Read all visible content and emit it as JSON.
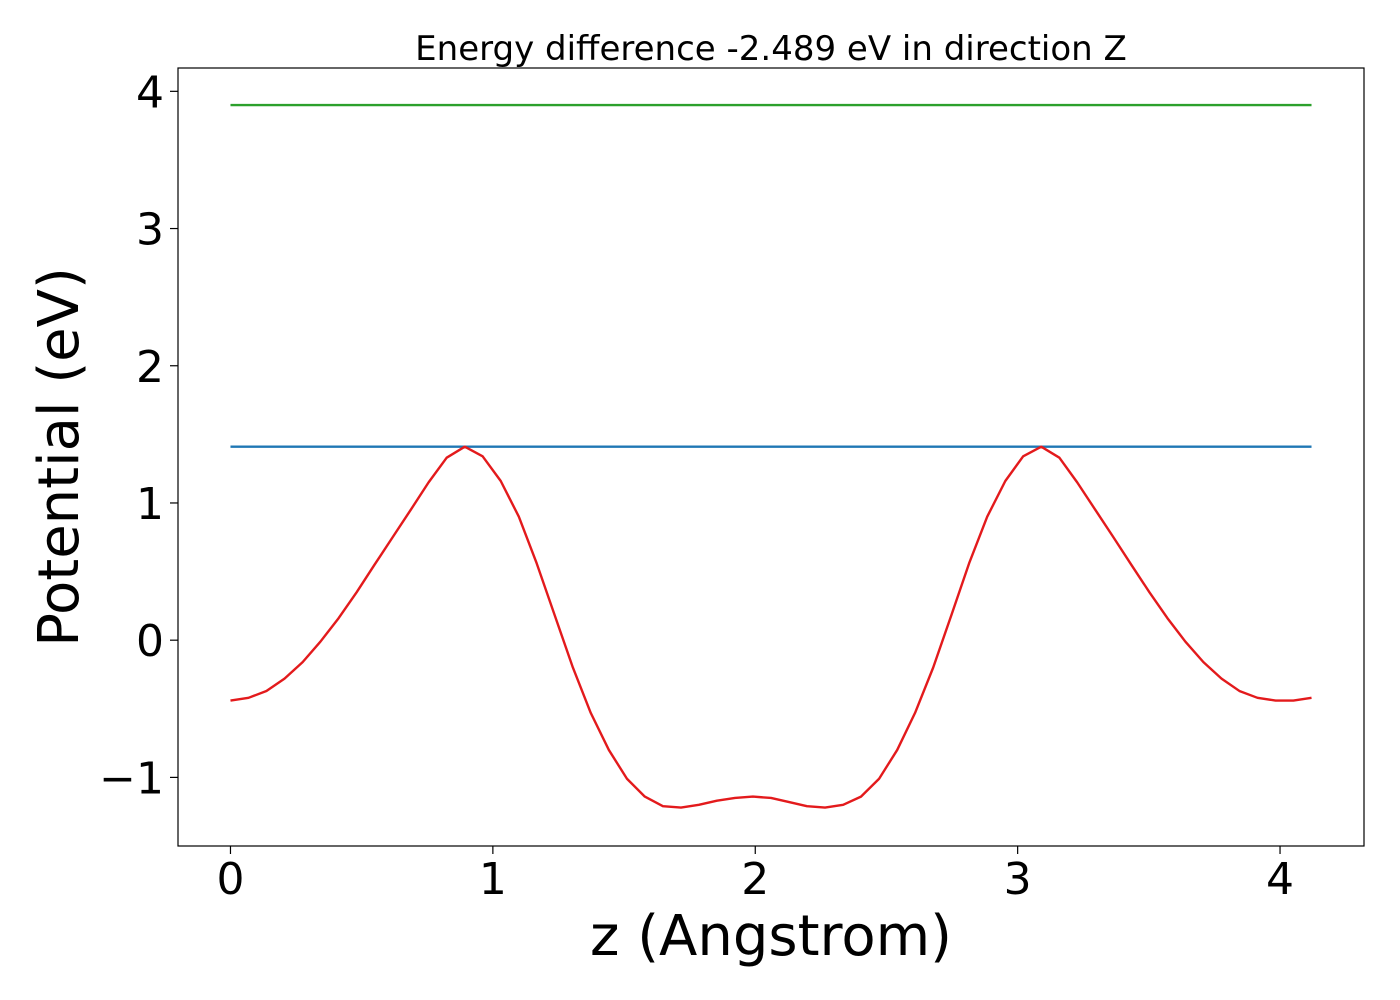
{
  "chart_data": {
    "type": "line",
    "title": "Energy difference -2.489 eV in direction Z",
    "xlabel": "z (Angstrom)",
    "ylabel": "Potential (eV)",
    "xlim": [
      -0.2,
      4.32
    ],
    "ylim": [
      -1.5,
      4.17
    ],
    "xticks": [
      0,
      1,
      2,
      3,
      4
    ],
    "yticks": [
      -1,
      0,
      1,
      2,
      3,
      4
    ],
    "xtick_labels": [
      "0",
      "1",
      "2",
      "3",
      "4"
    ],
    "ytick_labels": [
      "−1",
      "0",
      "1",
      "2",
      "3",
      "4"
    ],
    "grid": false,
    "legend": "none",
    "series": [
      {
        "color": "#2ca02c",
        "x": [
          0,
          4.12
        ],
        "y": [
          3.9,
          3.9
        ]
      },
      {
        "color": "#1f77b4",
        "x": [
          0,
          4.12
        ],
        "y": [
          1.41,
          1.41
        ]
      },
      {
        "color": "#e31a1c",
        "x": [
          0,
          0.069,
          0.137,
          0.206,
          0.275,
          0.343,
          0.412,
          0.481,
          0.549,
          0.618,
          0.687,
          0.755,
          0.824,
          0.893,
          0.961,
          1.03,
          1.099,
          1.167,
          1.236,
          1.305,
          1.373,
          1.442,
          1.511,
          1.579,
          1.648,
          1.717,
          1.785,
          1.854,
          1.923,
          1.991,
          2.06,
          2.129,
          2.197,
          2.266,
          2.335,
          2.403,
          2.472,
          2.541,
          2.609,
          2.678,
          2.747,
          2.815,
          2.884,
          2.953,
          3.021,
          3.09,
          3.159,
          3.227,
          3.296,
          3.365,
          3.433,
          3.502,
          3.571,
          3.639,
          3.708,
          3.777,
          3.845,
          3.914,
          3.983,
          4.051,
          4.12
        ],
        "y": [
          -0.44,
          -0.42,
          -0.37,
          -0.28,
          -0.16,
          -0.01,
          0.16,
          0.35,
          0.55,
          0.75,
          0.95,
          1.15,
          1.33,
          1.41,
          1.34,
          1.16,
          0.9,
          0.56,
          0.18,
          -0.2,
          -0.53,
          -0.8,
          -1.01,
          -1.14,
          -1.21,
          -1.22,
          -1.2,
          -1.17,
          -1.15,
          -1.14,
          -1.15,
          -1.18,
          -1.21,
          -1.22,
          -1.2,
          -1.14,
          -1.01,
          -0.8,
          -0.53,
          -0.2,
          0.18,
          0.56,
          0.9,
          1.16,
          1.34,
          1.41,
          1.33,
          1.15,
          0.95,
          0.75,
          0.55,
          0.35,
          0.16,
          -0.01,
          -0.16,
          -0.28,
          -0.37,
          -0.42,
          -0.44,
          -0.44,
          -0.42
        ]
      }
    ]
  }
}
